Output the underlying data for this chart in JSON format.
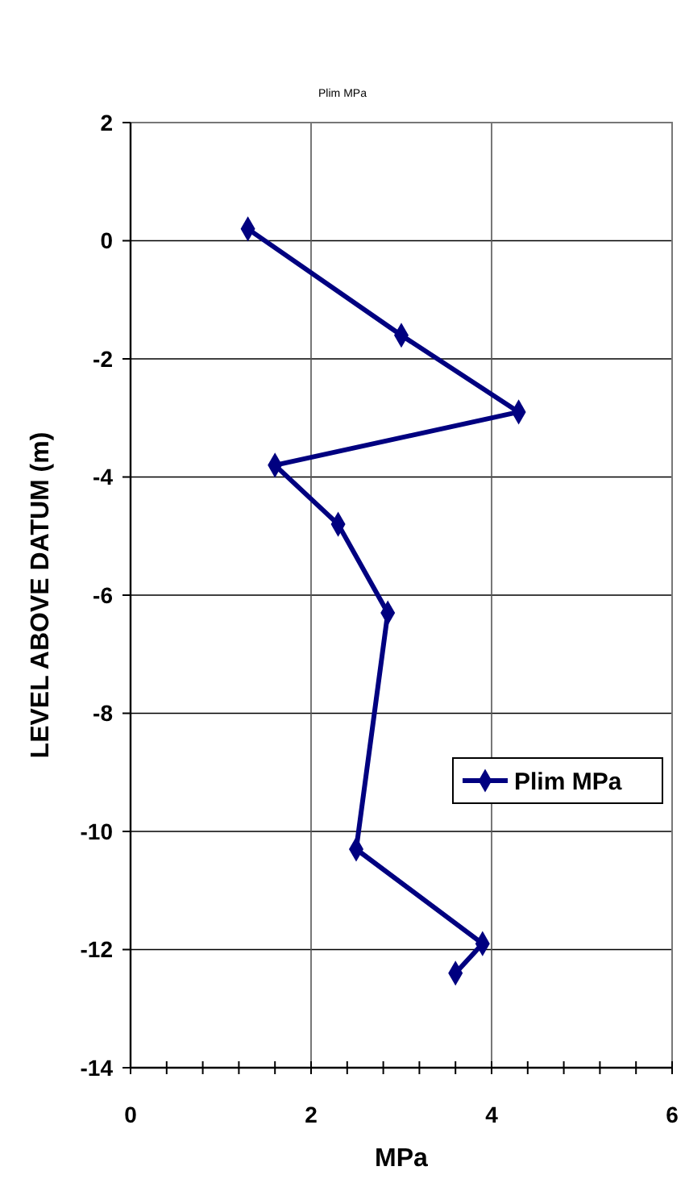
{
  "chart_data": {
    "type": "line",
    "title": "Plim MPa",
    "xlabel": "MPa",
    "ylabel": "LEVEL ABOVE DATUM (m)",
    "series": [
      {
        "name": "Plim MPa",
        "color": "#000080",
        "x": [
          1.3,
          3.0,
          4.3,
          1.6,
          2.3,
          2.85,
          2.5,
          3.9,
          3.6
        ],
        "values": [
          0.2,
          -1.6,
          -2.9,
          -3.8,
          -4.8,
          -6.3,
          -10.3,
          -11.9,
          -12.4
        ]
      }
    ],
    "xlim": [
      0,
      6
    ],
    "ylim": [
      -14,
      2
    ],
    "xticks": [
      0,
      {
        "value": 0.4,
        "label": null
      },
      {
        "value": 0.8,
        "label": null
      },
      {
        "value": 1.2,
        "label": null
      },
      {
        "value": 1.6,
        "label": null
      },
      2,
      {
        "value": 2.4,
        "label": null
      },
      {
        "value": 2.8,
        "label": null
      },
      {
        "value": 3.2,
        "label": null
      },
      {
        "value": 3.6,
        "label": null
      },
      4,
      {
        "value": 4.4,
        "label": null
      },
      {
        "value": 4.8,
        "label": null
      },
      {
        "value": 5.2,
        "label": null
      },
      {
        "value": 5.6,
        "label": null
      },
      6
    ],
    "yticks": [
      -14,
      -12,
      -10,
      -8,
      -6,
      -4,
      -2,
      0,
      2
    ],
    "grid": true,
    "legend": "right",
    "marker": "diamond",
    "line_style": "solid"
  }
}
